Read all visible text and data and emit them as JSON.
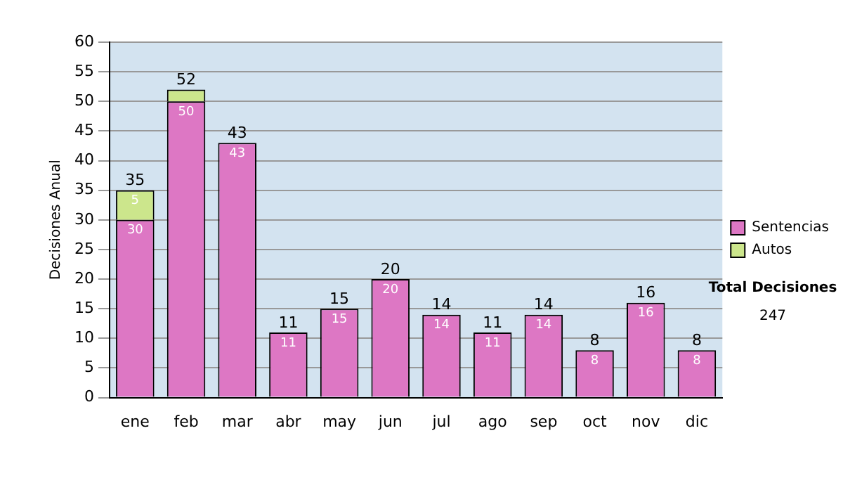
{
  "chart_data": {
    "type": "bar",
    "stacked": true,
    "ylabel": "Decisiones Anual",
    "categories": [
      "ene",
      "feb",
      "mar",
      "abr",
      "may",
      "jun",
      "jul",
      "ago",
      "sep",
      "oct",
      "nov",
      "dic"
    ],
    "series": [
      {
        "name": "Sentencias",
        "color": "#dd77c4",
        "values": [
          30,
          50,
          43,
          11,
          15,
          20,
          14,
          11,
          14,
          8,
          16,
          8
        ],
        "value_labels": [
          "30",
          "50",
          "43",
          "11",
          "15",
          "20",
          "14",
          "11",
          "14",
          "8",
          "16",
          "8"
        ]
      },
      {
        "name": "Autos",
        "color": "#cce68c",
        "values": [
          5,
          2,
          0,
          0,
          0,
          0,
          0,
          0,
          0,
          0,
          0,
          0
        ],
        "value_labels": [
          "5",
          null,
          null,
          null,
          null,
          null,
          null,
          null,
          null,
          null,
          null,
          null
        ]
      }
    ],
    "totals": [
      "35",
      "52",
      "43",
      "11",
      "15",
      "20",
      "14",
      "11",
      "14",
      "8",
      "16",
      "8"
    ],
    "ylim": [
      0,
      60
    ],
    "yticks": [
      0,
      5,
      10,
      15,
      20,
      25,
      30,
      35,
      40,
      45,
      50,
      55,
      60
    ],
    "grid": "y",
    "legend": "right",
    "annotations": [
      "Total Decisiones",
      "247"
    ]
  }
}
